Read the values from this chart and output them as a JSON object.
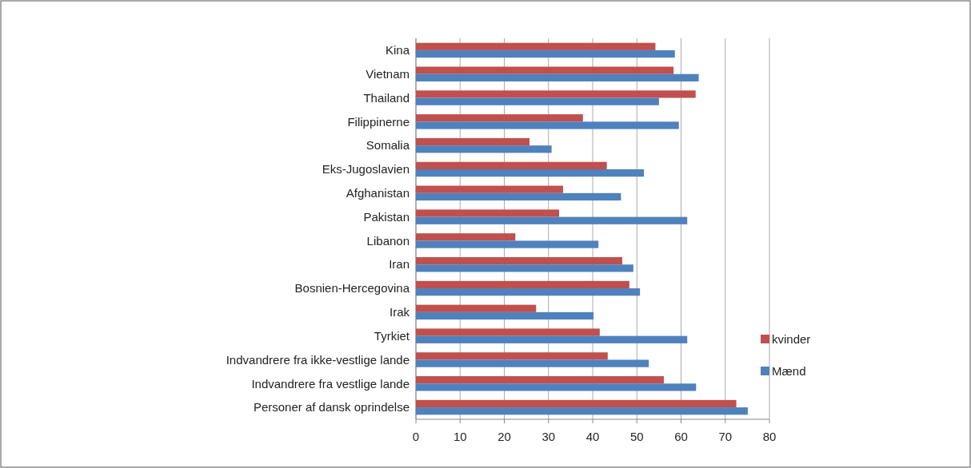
{
  "chart_data": {
    "type": "bar",
    "orientation": "horizontal",
    "categories": [
      "Kina",
      "Vietnam",
      "Thailand",
      "Filippinerne",
      "Somalia",
      "Eks-Jugoslavien",
      "Afghanistan",
      "Pakistan",
      "Libanon",
      "Iran",
      "Bosnien-Hercegovina",
      "Irak",
      "Tyrkiet",
      "Indvandrere fra ikke-vestlige lande",
      "Indvandrere fra vestlige lande",
      "Personer af dansk oprindelse"
    ],
    "series": [
      {
        "name": "kvinder",
        "color": "#c0504d",
        "values": [
          54.2,
          58.3,
          63.3,
          37.8,
          25.7,
          43.2,
          33.3,
          32.4,
          22.5,
          46.7,
          48.3,
          27.2,
          41.6,
          43.4,
          56.1,
          72.5
        ]
      },
      {
        "name": "Mænd",
        "color": "#4f81bd",
        "values": [
          58.6,
          64.0,
          55.0,
          59.5,
          30.7,
          51.6,
          46.4,
          61.4,
          41.3,
          49.2,
          50.7,
          40.2,
          61.4,
          52.7,
          63.4,
          75.1
        ]
      }
    ],
    "xlim": [
      0,
      80
    ],
    "xticks": [
      0,
      10,
      20,
      30,
      40,
      50,
      60,
      70,
      80
    ],
    "grid": "x",
    "legend": "right"
  }
}
